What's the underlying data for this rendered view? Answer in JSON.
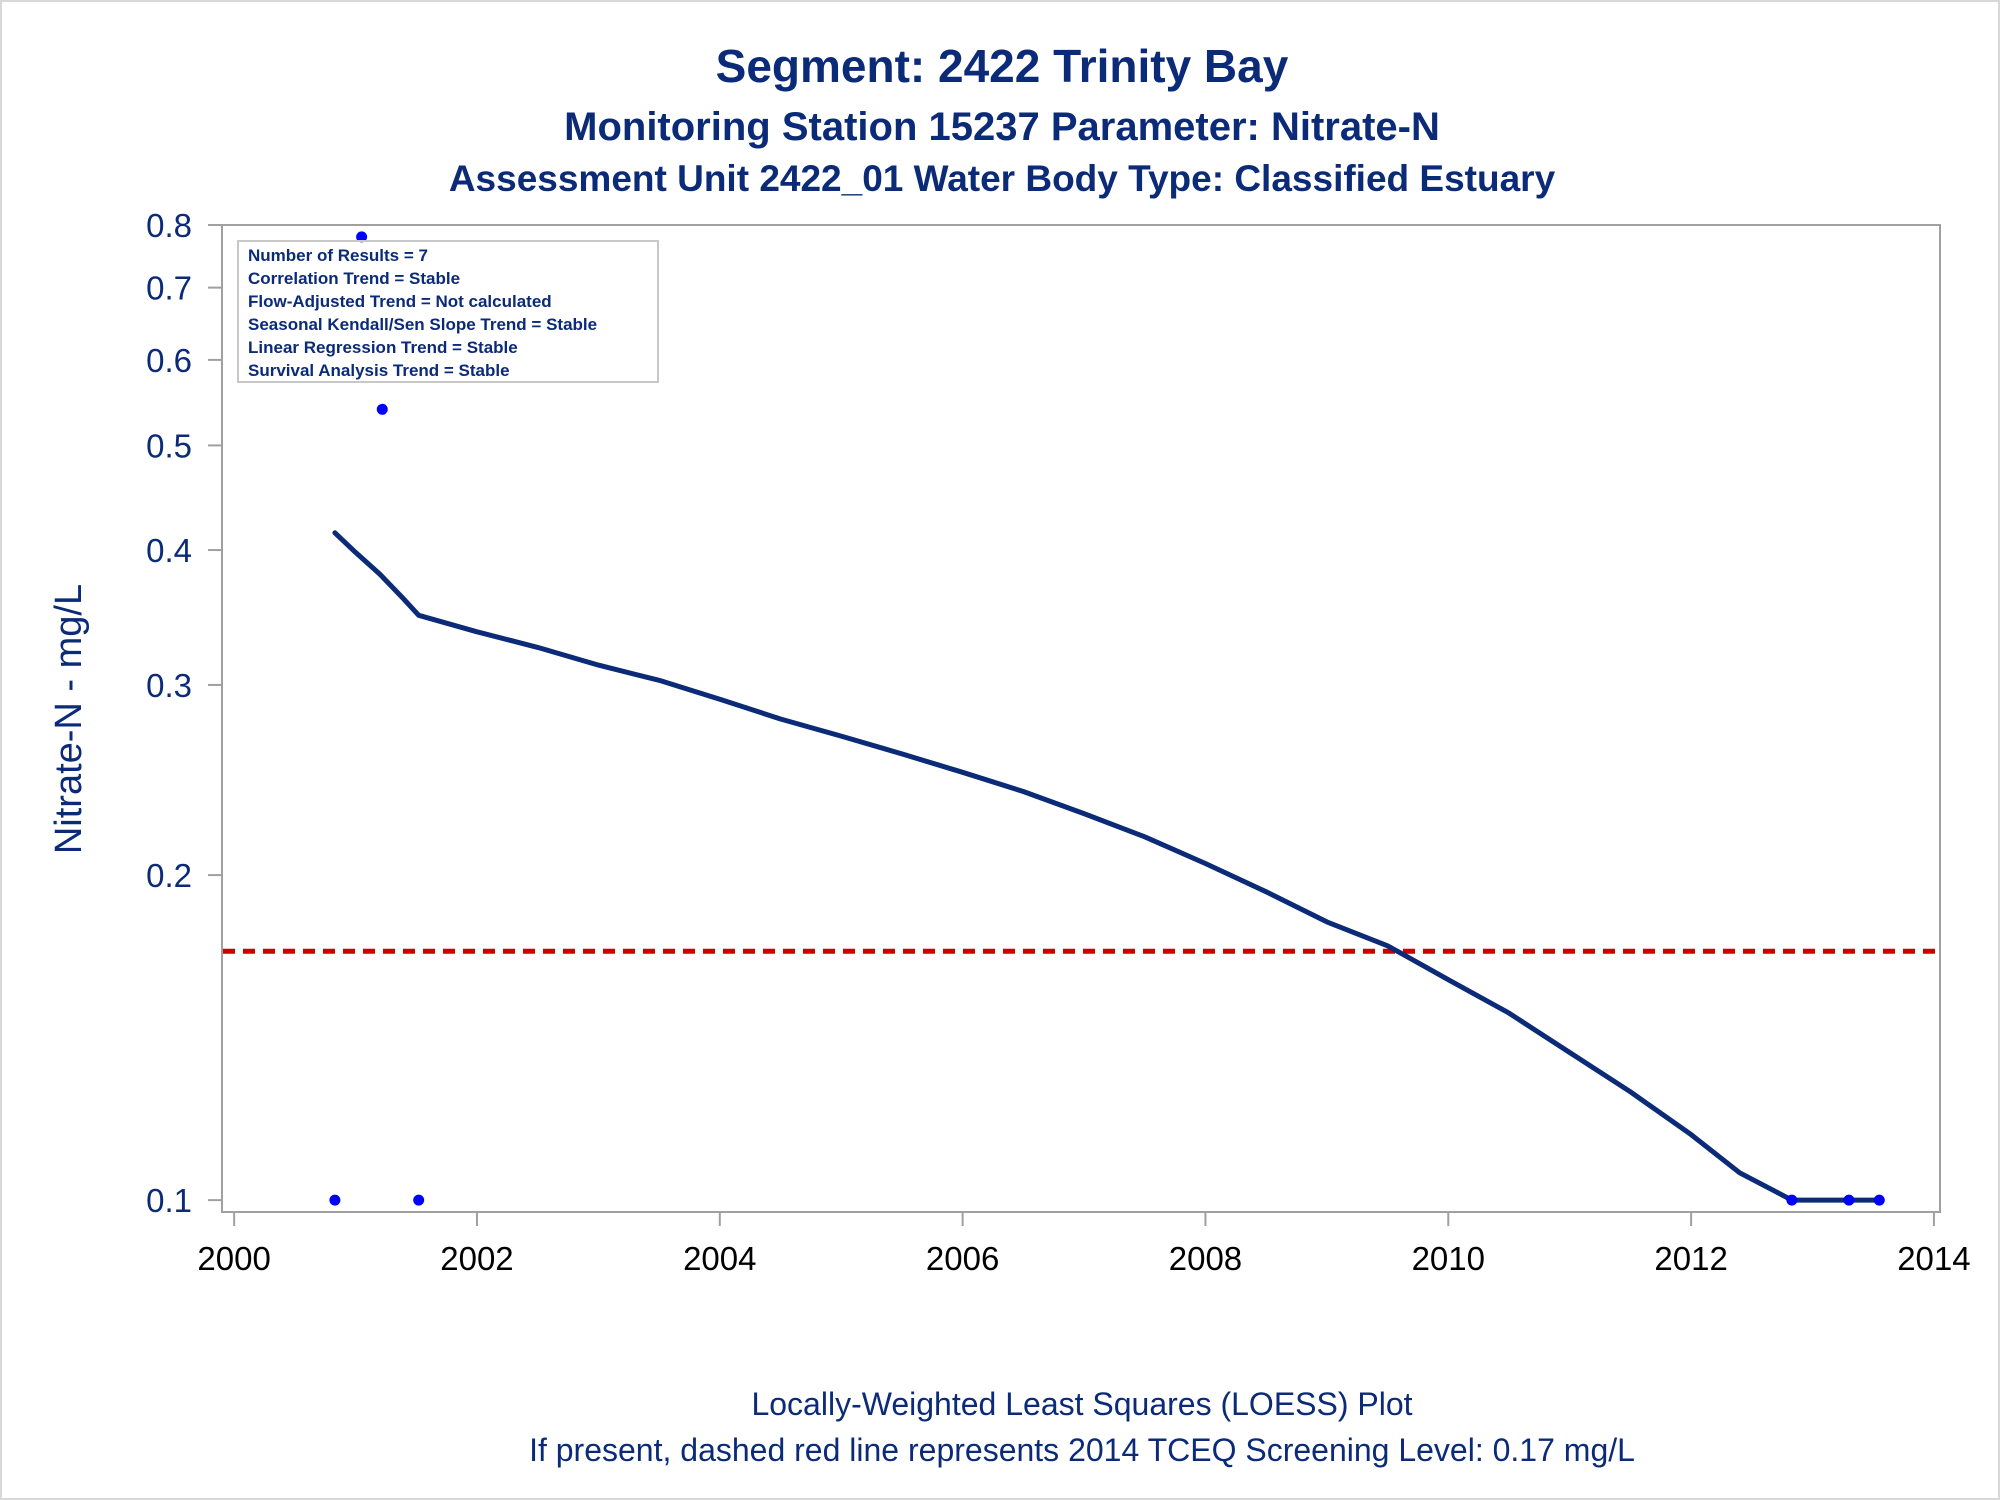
{
  "chart_data": {
    "type": "scatter",
    "title": "Segment: 2422  Trinity Bay",
    "subtitle_1": "Monitoring Station 15237 Parameter: Nitrate-N",
    "subtitle_2": "Assessment Unit 2422_01   Water Body Type: Classified Estuary",
    "xlabel": "",
    "ylabel": "Nitrate-N - mg/L",
    "x_scale": "linear",
    "y_scale": "log",
    "xlim": [
      1999.9,
      2014.05
    ],
    "ylim": [
      0.0975,
      0.8
    ],
    "x_ticks": [
      "2000",
      "2002",
      "2004",
      "2006",
      "2008",
      "2010",
      "2012",
      "2014"
    ],
    "y_ticks": [
      "0.1",
      "0.2",
      "0.3",
      "0.4",
      "0.5",
      "0.6",
      "0.7",
      "0.8"
    ],
    "grid": false,
    "points": [
      {
        "x": 2000.83,
        "y": 0.1
      },
      {
        "x": 2001.05,
        "y": 0.78
      },
      {
        "x": 2001.22,
        "y": 0.54
      },
      {
        "x": 2001.52,
        "y": 0.1
      },
      {
        "x": 2012.83,
        "y": 0.1
      },
      {
        "x": 2013.3,
        "y": 0.1
      },
      {
        "x": 2013.55,
        "y": 0.1
      }
    ],
    "loess": [
      {
        "x": 2000.83,
        "y": 0.415
      },
      {
        "x": 2001.0,
        "y": 0.398
      },
      {
        "x": 2001.2,
        "y": 0.38
      },
      {
        "x": 2001.4,
        "y": 0.36
      },
      {
        "x": 2001.52,
        "y": 0.348
      },
      {
        "x": 2002.0,
        "y": 0.336
      },
      {
        "x": 2002.5,
        "y": 0.325
      },
      {
        "x": 2003.0,
        "y": 0.313
      },
      {
        "x": 2003.5,
        "y": 0.303
      },
      {
        "x": 2004.0,
        "y": 0.291
      },
      {
        "x": 2004.5,
        "y": 0.279
      },
      {
        "x": 2005.0,
        "y": 0.269
      },
      {
        "x": 2005.5,
        "y": 0.259
      },
      {
        "x": 2006.0,
        "y": 0.249
      },
      {
        "x": 2006.5,
        "y": 0.239
      },
      {
        "x": 2007.0,
        "y": 0.228
      },
      {
        "x": 2007.5,
        "y": 0.217
      },
      {
        "x": 2008.0,
        "y": 0.205
      },
      {
        "x": 2008.5,
        "y": 0.193
      },
      {
        "x": 2009.0,
        "y": 0.181
      },
      {
        "x": 2009.5,
        "y": 0.172
      },
      {
        "x": 2010.0,
        "y": 0.16
      },
      {
        "x": 2010.5,
        "y": 0.149
      },
      {
        "x": 2011.0,
        "y": 0.137
      },
      {
        "x": 2011.5,
        "y": 0.126
      },
      {
        "x": 2012.0,
        "y": 0.115
      },
      {
        "x": 2012.4,
        "y": 0.106
      },
      {
        "x": 2012.83,
        "y": 0.1
      },
      {
        "x": 2013.3,
        "y": 0.1
      },
      {
        "x": 2013.55,
        "y": 0.1
      }
    ],
    "screening_level": 0.17,
    "stats_box": {
      "position": "top-left",
      "lines": [
        "Number of Results = 7",
        "Correlation Trend = Stable",
        "Flow-Adjusted Trend = Not calculated",
        "Seasonal Kendall/Sen Slope Trend = Stable",
        "Linear Regression Trend = Stable",
        "Survival Analysis Trend = Stable"
      ]
    },
    "footnote_1": "Locally-Weighted Least Squares (LOESS) Plot",
    "footnote_2": "If present, dashed red line represents 2014 TCEQ Screening Level: 0.17 mg/L",
    "colors": {
      "text": "#0b2a78",
      "tick_labels": "#000000",
      "axes": "#a0a0a0",
      "points": "#0000ff",
      "loess": "#0b2a78",
      "screening_line": "#cc0000"
    }
  }
}
